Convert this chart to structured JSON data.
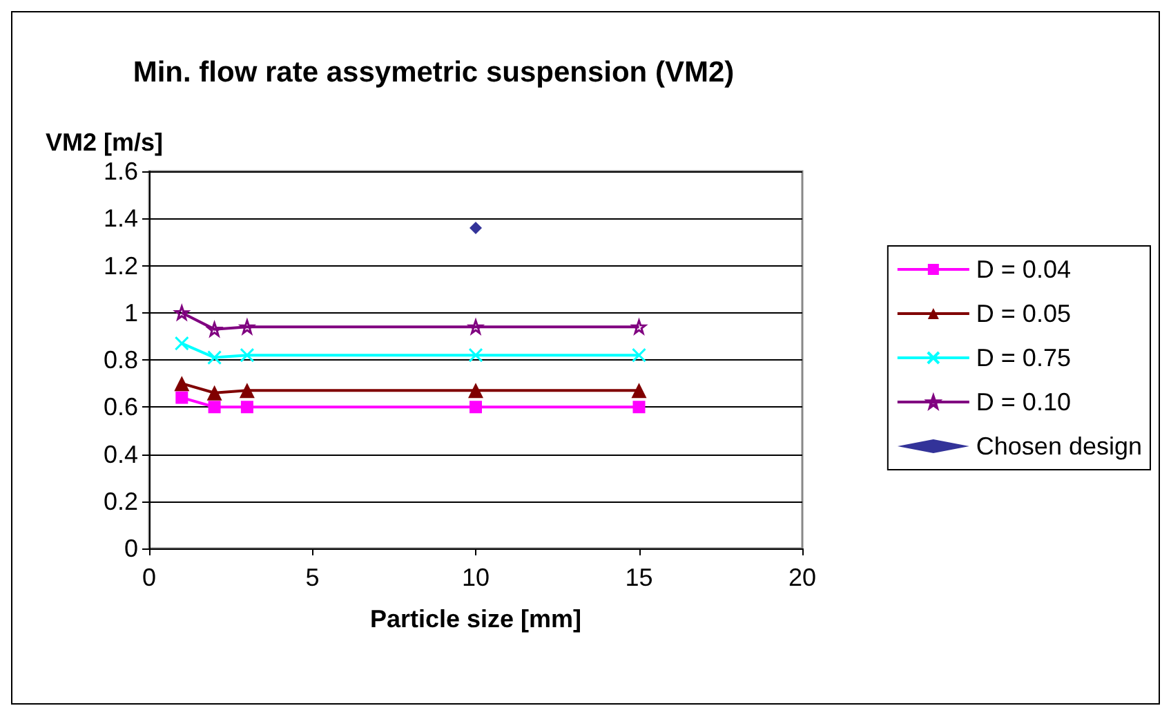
{
  "chart_data": {
    "type": "line",
    "title": "Min. flow rate assymetric suspension (VM2)",
    "xlabel": "Particle size [mm]",
    "ylabel": "VM2 [m/s]",
    "x": [
      1,
      2,
      3,
      10,
      15
    ],
    "series": [
      {
        "name": "D = 0.04",
        "color": "#ff00ff",
        "marker": "square",
        "values": [
          0.64,
          0.6,
          0.6,
          0.6,
          0.6
        ]
      },
      {
        "name": "D = 0.05",
        "color": "#800000",
        "marker": "triangle",
        "values": [
          0.7,
          0.66,
          0.67,
          0.67,
          0.67
        ]
      },
      {
        "name": "D = 0.75",
        "color": "#00ffff",
        "marker": "cross",
        "values": [
          0.87,
          0.81,
          0.82,
          0.82,
          0.82
        ]
      },
      {
        "name": "D = 0.10",
        "color": "#800080",
        "marker": "star",
        "values": [
          1.0,
          0.93,
          0.94,
          0.94,
          0.94
        ]
      },
      {
        "name": "Chosen design",
        "type": "scatter",
        "color": "#000080",
        "marker": "diamond",
        "x": [
          10
        ],
        "values": [
          1.36
        ]
      }
    ],
    "xlim": [
      0,
      20
    ],
    "xticks": [
      0,
      5,
      10,
      15,
      20
    ],
    "ylim": [
      0,
      1.6
    ],
    "yticks": [
      0,
      0.2,
      0.4,
      0.6,
      0.8,
      1,
      1.2,
      1.4,
      1.6
    ],
    "grid": "y",
    "legend": "right"
  }
}
